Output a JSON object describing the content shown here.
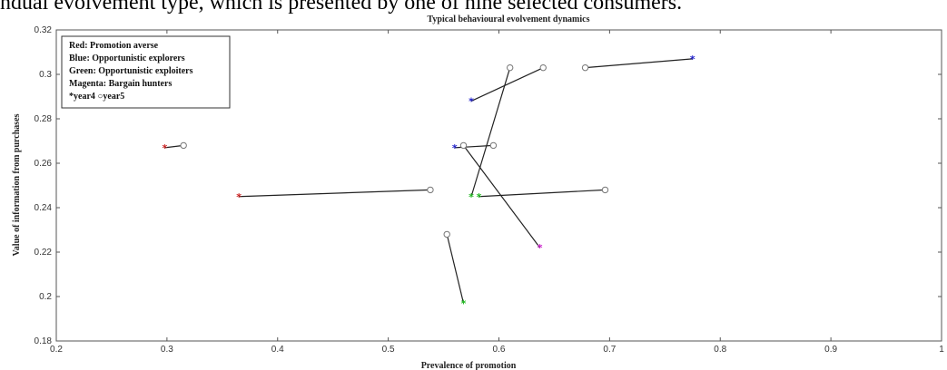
{
  "caption_fragment": "ndual evolvement type, which is presented by one of nine selected consumers.",
  "chart_data": {
    "type": "scatter",
    "title": "Typical behavioural evolvement dynamics",
    "xlabel": "Prevalence of promotion",
    "ylabel": "Value of information from purchases",
    "xlim": [
      0.2,
      1.0
    ],
    "ylim": [
      0.18,
      0.32
    ],
    "xticks": [
      "0.2",
      "0.3",
      "0.4",
      "0.5",
      "0.6",
      "0.7",
      "0.8",
      "0.9",
      "1"
    ],
    "yticks": [
      "0.18",
      "0.2",
      "0.22",
      "0.24",
      "0.26",
      "0.28",
      "0.3",
      "0.32"
    ],
    "grid": false,
    "legend_position": "top-left",
    "legend_lines": [
      "Red: Promotion averse",
      "Blue: Opportunistic explorers",
      "Green: Opportunistic exploiters",
      "Magenta: Bargain hunters",
      "*year4  ○year5"
    ],
    "series": [
      {
        "group": "Red",
        "color": "#cc2222",
        "segments": [
          {
            "year4": [
              0.298,
              0.267
            ],
            "year5": [
              0.315,
              0.268
            ]
          },
          {
            "year4": [
              0.365,
              0.245
            ],
            "year5": [
              0.538,
              0.248
            ]
          }
        ]
      },
      {
        "group": "Blue",
        "color": "#2222cc",
        "segments": [
          {
            "year4": [
              0.575,
              0.288
            ],
            "year5": [
              0.64,
              0.303
            ]
          },
          {
            "year4": [
              0.56,
              0.267
            ],
            "year5": [
              0.595,
              0.268
            ]
          },
          {
            "year4": [
              0.775,
              0.307
            ],
            "year5": [
              0.678,
              0.303
            ]
          }
        ]
      },
      {
        "group": "Green",
        "color": "#22bb22",
        "segments": [
          {
            "year4": [
              0.575,
              0.245
            ],
            "year5": [
              0.61,
              0.303
            ]
          },
          {
            "year4": [
              0.582,
              0.245
            ],
            "year5": [
              0.696,
              0.248
            ]
          },
          {
            "year4": [
              0.568,
              0.197
            ],
            "year5": [
              0.553,
              0.228
            ]
          }
        ]
      },
      {
        "group": "Magenta",
        "color": "#cc22cc",
        "segments": [
          {
            "year4": [
              0.637,
              0.222
            ],
            "year5": [
              0.568,
              0.268
            ]
          }
        ]
      }
    ]
  }
}
